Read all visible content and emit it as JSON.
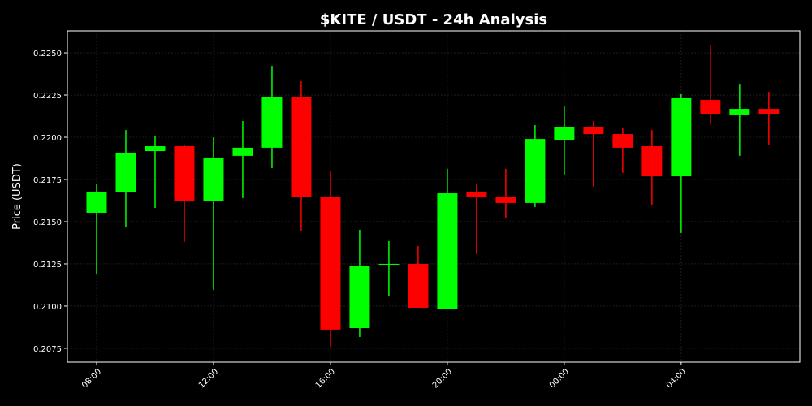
{
  "chart_data": {
    "type": "candlestick",
    "title": "$KITE / USDT - 24h Analysis",
    "ylabel": "Price (USDT)",
    "categories": [
      "08:00",
      null,
      null,
      null,
      "12:00",
      null,
      null,
      null,
      "16:00",
      null,
      null,
      null,
      "20:00",
      null,
      null,
      null,
      "00:00",
      null,
      null,
      null,
      "04:00",
      null,
      null,
      null
    ],
    "open": [
      0.21553,
      0.21673,
      0.21918,
      0.21947,
      0.2162,
      0.2189,
      0.21938,
      0.2224,
      0.21649,
      0.2087,
      0.2125,
      0.2125,
      0.20981,
      0.21678,
      0.21649,
      0.21611,
      0.21981,
      0.22058,
      0.22019,
      0.21947,
      0.21769,
      0.22221,
      0.2213,
      0.22168
    ],
    "high": [
      0.21726,
      0.22043,
      0.22005,
      0.21952,
      0.22,
      0.22096,
      0.22423,
      0.22332,
      0.21803,
      0.21452,
      0.21385,
      0.21356,
      0.21813,
      0.21726,
      0.21813,
      0.22072,
      0.22183,
      0.22096,
      0.22053,
      0.22043,
      0.22255,
      0.22543,
      0.22312,
      0.22269
    ],
    "low": [
      0.21192,
      0.21466,
      0.21582,
      0.2138,
      0.21096,
      0.2164,
      0.21817,
      0.21447,
      0.2076,
      0.20817,
      0.21058,
      0.2099,
      0.20981,
      0.21308,
      0.21519,
      0.21587,
      0.21779,
      0.21707,
      0.21789,
      0.21601,
      0.21433,
      0.22077,
      0.2189,
      0.21957
    ],
    "close": [
      0.21678,
      0.21909,
      0.21947,
      0.2162,
      0.2188,
      0.21938,
      0.2224,
      0.21649,
      0.20861,
      0.2124,
      0.2125,
      0.2099,
      0.21668,
      0.21649,
      0.21611,
      0.2199,
      0.22058,
      0.22019,
      0.21938,
      0.21769,
      0.22231,
      0.22139,
      0.22168,
      0.22139
    ],
    "up_color": "#00ff00",
    "down_color": "#ff0000",
    "ylim": [
      0.20668,
      0.2263
    ],
    "yticks": [
      0.2075,
      {
        "value": 0.21,
        "label": "0.2100"
      },
      0.2125,
      {
        "value": 0.215,
        "label": "0.2150"
      },
      0.2175,
      {
        "value": 0.22,
        "label": "0.2200"
      },
      0.2225,
      {
        "value": 0.225,
        "label": "0.2250"
      }
    ],
    "grid": true
  }
}
